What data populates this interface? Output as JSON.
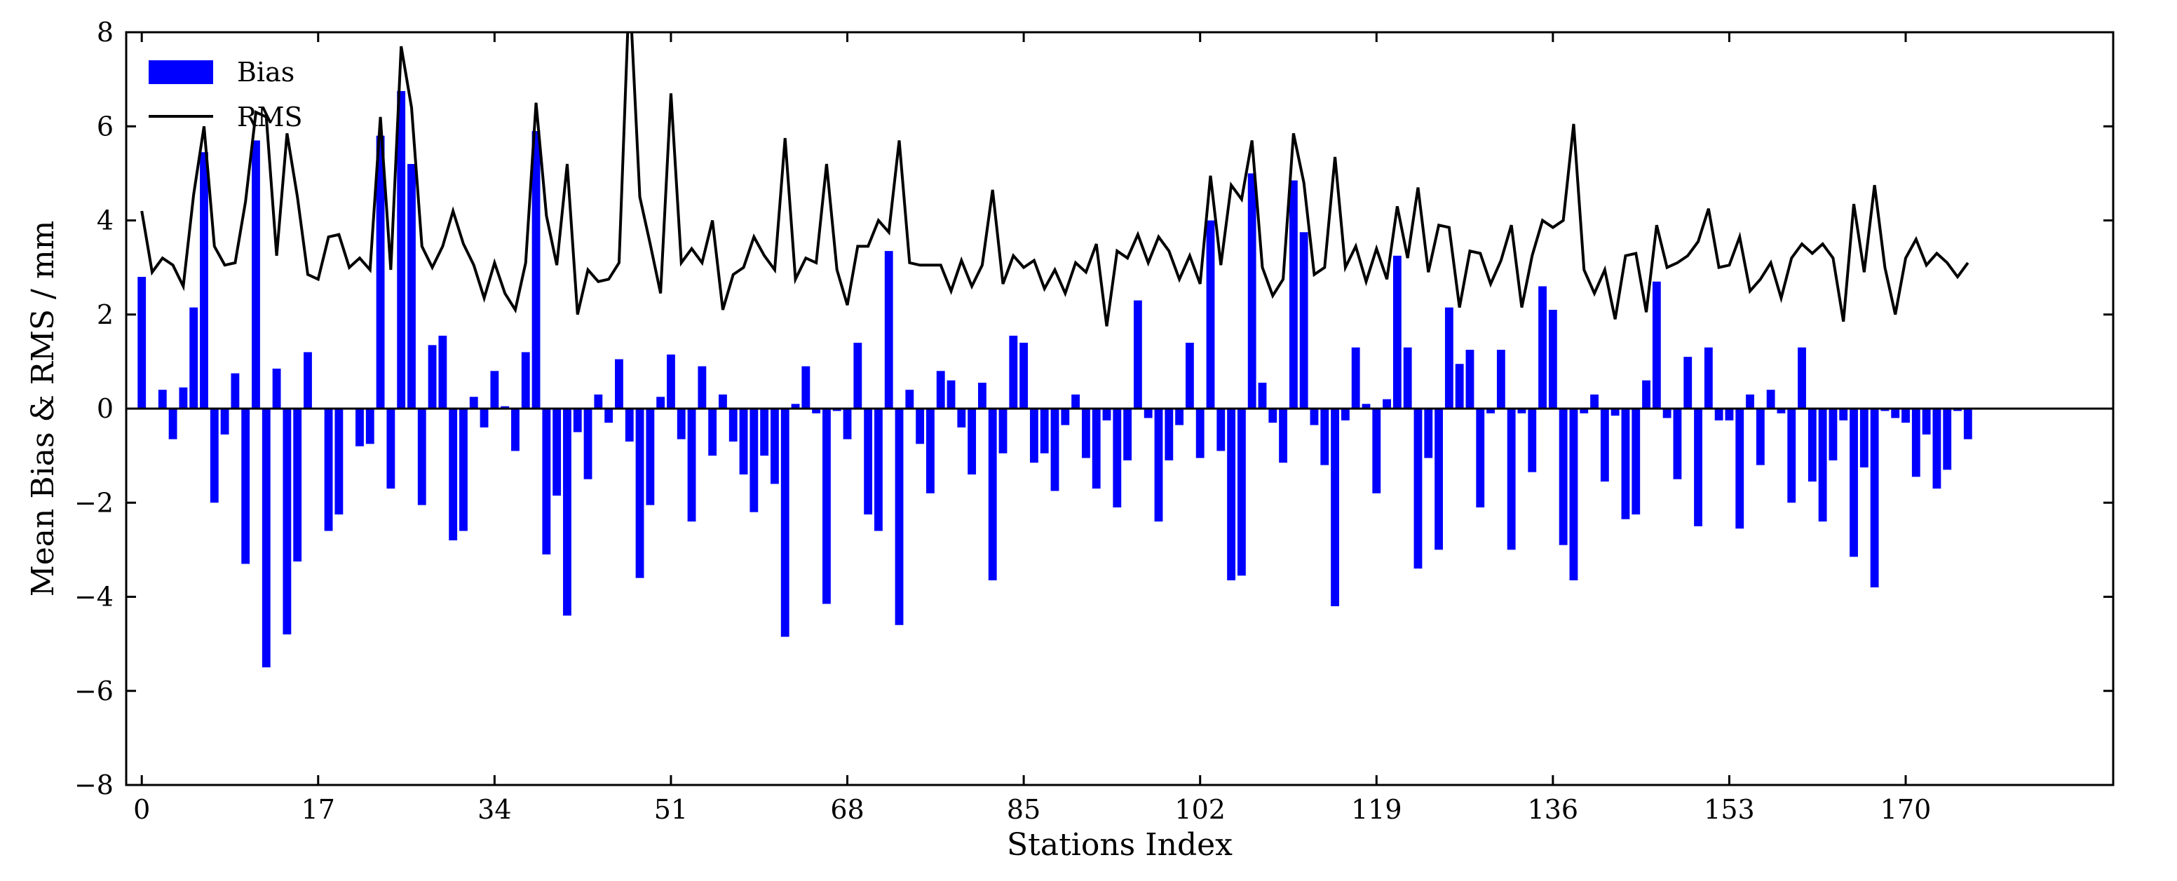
{
  "chart_data": {
    "type": "bar",
    "xlabel": "Stations Index",
    "ylabel": "Mean Bias & RMS / mm",
    "xlim": [
      -1.5,
      190
    ],
    "ylim": [
      -8,
      8
    ],
    "xticks": [
      0,
      17,
      34,
      51,
      68,
      85,
      102,
      119,
      136,
      153,
      170
    ],
    "yticks": [
      -8,
      -6,
      -4,
      -2,
      0,
      2,
      4,
      6,
      8
    ],
    "grid": false,
    "legend_position": "upper-left",
    "legend": [
      "Bias",
      "RMS"
    ],
    "colors": {
      "bias": "#0000ff",
      "rms": "#000000",
      "axes": "#000000",
      "background": "#ffffff"
    },
    "series": [
      {
        "name": "Bias",
        "kind": "bar",
        "x_start": 0,
        "values": [
          2.8,
          0.0,
          0.4,
          -0.65,
          0.45,
          2.15,
          5.45,
          -2.0,
          -0.55,
          0.75,
          -3.3,
          5.7,
          -5.5,
          0.85,
          -4.8,
          -3.25,
          1.2,
          0.0,
          -2.6,
          -2.25,
          0.0,
          -0.8,
          -0.75,
          5.8,
          -1.7,
          6.75,
          5.2,
          -2.05,
          1.35,
          1.55,
          -2.8,
          -2.6,
          0.25,
          -0.4,
          0.8,
          0.05,
          -0.9,
          1.2,
          5.9,
          -3.1,
          -1.85,
          -4.4,
          -0.5,
          -1.5,
          0.3,
          -0.3,
          1.05,
          -0.7,
          -3.6,
          -2.05,
          0.25,
          1.15,
          -0.65,
          -2.4,
          0.9,
          -1.0,
          0.3,
          -0.7,
          -1.4,
          -2.2,
          -1.0,
          -1.6,
          -4.85,
          0.1,
          0.9,
          -0.1,
          -4.15,
          -0.05,
          -0.65,
          1.4,
          -2.25,
          -2.6,
          3.35,
          -4.6,
          0.4,
          -0.75,
          -1.8,
          0.8,
          0.6,
          -0.4,
          -1.4,
          0.55,
          -3.65,
          -0.95,
          1.55,
          1.4,
          -1.15,
          -0.95,
          -1.75,
          -0.35,
          0.3,
          -1.05,
          -1.7,
          -0.25,
          -2.1,
          -1.1,
          2.3,
          -0.2,
          -2.4,
          -1.1,
          -0.35,
          1.4,
          -1.05,
          4.0,
          -0.9,
          -3.65,
          -3.55,
          5.0,
          0.55,
          -0.3,
          -1.15,
          4.85,
          3.75,
          -0.35,
          -1.2,
          -4.2,
          -0.25,
          1.3,
          0.1,
          -1.8,
          0.2,
          3.25,
          1.3,
          -3.4,
          -1.05,
          -3.0,
          2.15,
          0.95,
          1.25,
          -2.1,
          -0.1,
          1.25,
          -3.0,
          -0.1,
          -1.35,
          2.6,
          2.1,
          -2.9,
          -3.65,
          -0.1,
          0.3,
          -1.55,
          -0.15,
          -2.35,
          -2.25,
          0.6,
          2.7,
          -0.2,
          -1.5,
          1.1,
          -2.5,
          1.3,
          -0.25,
          -0.25,
          -2.55,
          0.3,
          -1.2,
          0.4,
          -0.1,
          -2.0,
          1.3,
          -1.55,
          -2.4,
          -1.1,
          -0.25,
          -3.15,
          -1.25,
          -3.8,
          -0.05,
          -0.2,
          -0.3,
          -1.45,
          -0.55,
          -1.7,
          -1.3,
          -0.05,
          -0.65
        ]
      },
      {
        "name": "RMS",
        "kind": "line",
        "x_start": 0,
        "values": [
          4.2,
          2.9,
          3.2,
          3.05,
          2.6,
          4.55,
          6.0,
          3.45,
          3.05,
          3.1,
          4.4,
          6.3,
          6.2,
          3.25,
          5.85,
          4.5,
          2.85,
          2.75,
          3.65,
          3.7,
          3.0,
          3.2,
          2.95,
          6.2,
          2.95,
          7.7,
          6.4,
          3.45,
          3.0,
          3.45,
          4.2,
          3.5,
          3.05,
          2.35,
          3.1,
          2.45,
          2.1,
          3.1,
          6.5,
          4.1,
          3.05,
          5.2,
          2.0,
          2.95,
          2.7,
          2.75,
          3.1,
          9.0,
          4.5,
          3.5,
          2.45,
          6.7,
          3.1,
          3.4,
          3.1,
          4.0,
          2.1,
          2.85,
          3.0,
          3.65,
          3.25,
          2.95,
          5.75,
          2.75,
          3.2,
          3.1,
          5.2,
          2.95,
          2.2,
          3.45,
          3.45,
          4.0,
          3.75,
          5.7,
          3.1,
          3.05,
          3.05,
          3.05,
          2.5,
          3.15,
          2.6,
          3.05,
          4.65,
          2.65,
          3.25,
          3.0,
          3.15,
          2.55,
          2.95,
          2.45,
          3.1,
          2.9,
          3.5,
          1.75,
          3.35,
          3.2,
          3.7,
          3.1,
          3.65,
          3.35,
          2.75,
          3.25,
          2.65,
          4.95,
          3.05,
          4.75,
          4.45,
          5.7,
          3.0,
          2.4,
          2.75,
          5.85,
          4.8,
          2.85,
          3.0,
          5.35,
          3.0,
          3.45,
          2.7,
          3.4,
          2.75,
          4.3,
          3.2,
          4.7,
          2.9,
          3.9,
          3.85,
          2.15,
          3.35,
          3.3,
          2.65,
          3.15,
          3.9,
          2.15,
          3.25,
          4.0,
          3.85,
          4.0,
          6.05,
          2.95,
          2.45,
          2.95,
          1.9,
          3.25,
          3.3,
          2.05,
          3.9,
          3.0,
          3.1,
          3.25,
          3.55,
          4.25,
          3.0,
          3.05,
          3.65,
          2.5,
          2.75,
          3.1,
          2.35,
          3.2,
          3.5,
          3.3,
          3.5,
          3.2,
          1.85,
          4.35,
          2.9,
          4.75,
          3.0,
          2.0,
          3.2,
          3.6,
          3.05,
          3.3,
          3.1,
          2.8,
          3.1
        ]
      }
    ]
  }
}
